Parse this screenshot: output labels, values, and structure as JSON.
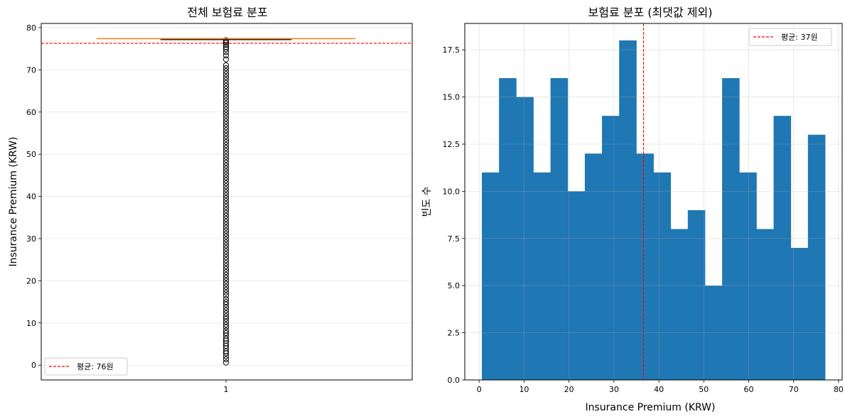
{
  "chart_data": [
    {
      "type": "box",
      "title": "전체 보험료 분포",
      "xlabel": "",
      "ylabel": "Insurance Premium (KRW)",
      "x_tick_labels": [
        "1"
      ],
      "ylim": [
        -3.5,
        81
      ],
      "y_ticks": [
        0,
        10,
        20,
        30,
        40,
        50,
        60,
        70,
        80
      ],
      "grid": true,
      "box": {
        "q1": 77.2,
        "median": 77.4,
        "q3": 77.4,
        "whisker_low": 77.2,
        "whisker_high": 77.4
      },
      "mean_line": {
        "value": 76.3,
        "label": "평균: 76원",
        "color": "#ff0000",
        "style": "dashed"
      },
      "outliers": [
        0.6,
        1.4,
        2.1,
        2.8,
        3.3,
        4.0,
        4.6,
        5.2,
        5.8,
        6.3,
        7.0,
        7.6,
        8.2,
        9.0,
        9.6,
        10.3,
        11.0,
        11.6,
        12.3,
        13.0,
        13.7,
        14.4,
        15.0,
        15.7,
        16.5,
        17.2,
        17.9,
        18.6,
        19.3,
        20.0,
        20.7,
        21.4,
        22.1,
        22.8,
        23.5,
        24.2,
        24.9,
        25.6,
        26.3,
        27.0,
        27.7,
        28.4,
        29.1,
        29.8,
        30.5,
        31.2,
        31.9,
        32.6,
        33.3,
        34.0,
        34.7,
        35.4,
        36.1,
        36.8,
        37.5,
        38.2,
        38.9,
        39.6,
        40.3,
        41.0,
        41.7,
        42.4,
        43.1,
        43.8,
        44.5,
        45.2,
        45.9,
        46.6,
        47.3,
        48.0,
        48.7,
        49.4,
        50.1,
        50.8,
        51.5,
        52.2,
        52.9,
        53.6,
        54.3,
        55.0,
        55.7,
        56.4,
        57.1,
        57.8,
        58.5,
        59.2,
        59.9,
        60.6,
        61.3,
        62.0,
        62.7,
        63.4,
        64.1,
        64.8,
        65.5,
        66.2,
        66.9,
        67.6,
        68.3,
        69.0,
        69.7,
        70.4,
        71.1,
        72.5,
        73.4,
        74.2,
        74.9,
        75.4,
        75.9,
        76.4,
        76.8,
        77.0
      ],
      "colors": {
        "mean": "#ff0000",
        "median": "#ff7f0e",
        "outlier_edge": "#000000",
        "box": "#000000"
      }
    },
    {
      "type": "histogram",
      "title": "보험료 분포 (최댓값 제외)",
      "xlabel": "Insurance Premium (KRW)",
      "ylabel": "빈도 수",
      "bin_edges": [
        0.6,
        4.42,
        8.24,
        12.06,
        15.88,
        19.7,
        23.52,
        27.34,
        31.16,
        34.98,
        38.8,
        42.62,
        46.44,
        50.26,
        54.08,
        57.9,
        61.72,
        65.54,
        69.36,
        73.18,
        77.0
      ],
      "counts": [
        11,
        16,
        15,
        11,
        16,
        10,
        12,
        14,
        18,
        12,
        11,
        8,
        9,
        5,
        16,
        11,
        8,
        14,
        7,
        13
      ],
      "xlim": [
        -3.2,
        80.8
      ],
      "ylim": [
        0,
        18.9
      ],
      "x_ticks": [
        0,
        10,
        20,
        30,
        40,
        50,
        60,
        70,
        80
      ],
      "y_ticks": [
        0.0,
        2.5,
        5.0,
        7.5,
        10.0,
        12.5,
        15.0,
        17.5
      ],
      "y_tick_labels": [
        "0.0",
        "2.5",
        "5.0",
        "7.5",
        "10.0",
        "12.5",
        "15.0",
        "17.5"
      ],
      "grid": true,
      "bar_color": "#1f77b4",
      "mean_line": {
        "value": 36.6,
        "label": "평균: 37원",
        "color": "#ff0000",
        "style": "dashed"
      },
      "legend_position": "top-right"
    }
  ]
}
